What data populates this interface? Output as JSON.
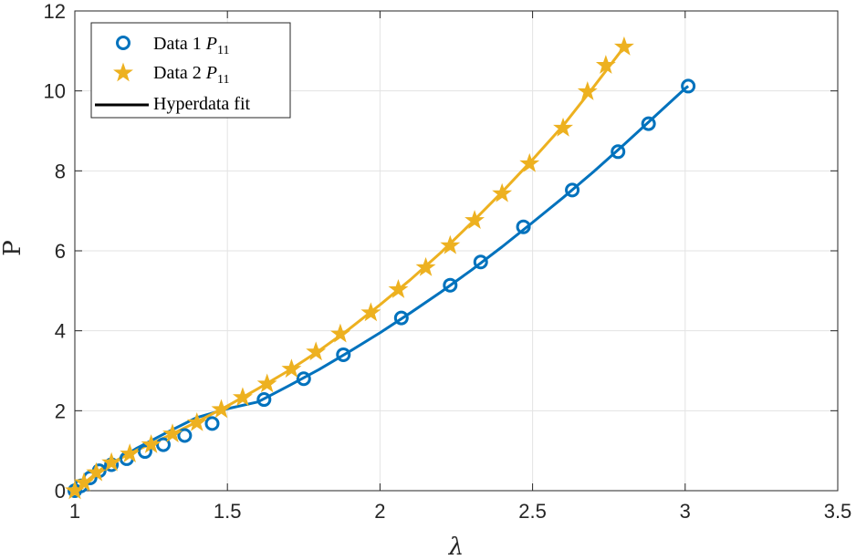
{
  "chart_data": {
    "type": "line",
    "xlabel": "λ",
    "ylabel": "P",
    "xlim": [
      1,
      3.5
    ],
    "ylim": [
      0,
      12
    ],
    "xticks": [
      "1",
      "1.5",
      "2",
      "2.5",
      "3",
      "3.5"
    ],
    "yticks": [
      "0",
      "2",
      "4",
      "6",
      "8",
      "10",
      "12"
    ],
    "grid": true,
    "legend_position": "top-left",
    "legend": [
      {
        "label_main": "Data 1 ",
        "label_var": "P",
        "label_sub": "11",
        "marker": "circle",
        "color": "#0072BD"
      },
      {
        "label_main": "Data 2 ",
        "label_var": "P",
        "label_sub": "11",
        "marker": "star",
        "color": "#EDB120"
      },
      {
        "label_main": "Hyperdata fit",
        "marker": "line",
        "color": "#000000"
      }
    ],
    "series": [
      {
        "name": "Data 1 P11",
        "marker": "circle",
        "color": "#0072BD",
        "x": [
          1.0,
          1.02,
          1.05,
          1.08,
          1.12,
          1.17,
          1.23,
          1.29,
          1.36,
          1.45,
          1.62,
          1.75,
          1.88,
          2.07,
          2.23,
          2.33,
          2.47,
          2.63,
          2.78,
          2.88,
          3.01
        ],
        "y": [
          0.0,
          0.12,
          0.32,
          0.5,
          0.65,
          0.8,
          0.98,
          1.15,
          1.38,
          1.68,
          2.28,
          2.8,
          3.4,
          4.32,
          5.14,
          5.72,
          6.6,
          7.52,
          8.48,
          9.18,
          10.12
        ]
      },
      {
        "name": "Data 2 P11",
        "marker": "star",
        "color": "#EDB120",
        "x": [
          1.0,
          1.03,
          1.07,
          1.12,
          1.18,
          1.25,
          1.32,
          1.4,
          1.48,
          1.55,
          1.63,
          1.71,
          1.79,
          1.87,
          1.97,
          2.06,
          2.15,
          2.23,
          2.31,
          2.4,
          2.49,
          2.6,
          2.68,
          2.74,
          2.8
        ],
        "y": [
          0.0,
          0.2,
          0.45,
          0.7,
          0.92,
          1.15,
          1.42,
          1.7,
          2.03,
          2.33,
          2.67,
          3.04,
          3.47,
          3.92,
          4.45,
          5.03,
          5.58,
          6.13,
          6.76,
          7.43,
          8.18,
          9.07,
          9.98,
          10.64,
          11.1
        ]
      }
    ],
    "fits": [
      {
        "name": "Hyperdata fit (Data 1)",
        "color": "#0072BD",
        "x": [
          1.0,
          1.1,
          1.2,
          1.3,
          1.4,
          1.5,
          1.6,
          1.7,
          1.8,
          1.9,
          2.0,
          2.1,
          2.2,
          2.3,
          2.4,
          2.5,
          2.6,
          2.7,
          2.8,
          2.9,
          3.0,
          3.01
        ],
        "y": [
          0.0,
          0.58,
          1.05,
          1.45,
          1.83,
          2.05,
          2.22,
          2.62,
          3.03,
          3.48,
          3.95,
          4.45,
          4.97,
          5.52,
          6.1,
          6.71,
          7.33,
          7.98,
          8.66,
          9.36,
          10.06,
          10.12
        ]
      },
      {
        "name": "Hyperdata fit (Data 2)",
        "color": "#EDB120",
        "x": [
          1.0,
          1.1,
          1.2,
          1.3,
          1.4,
          1.5,
          1.6,
          1.7,
          1.8,
          1.9,
          2.0,
          2.1,
          2.2,
          2.3,
          2.4,
          2.5,
          2.6,
          2.7,
          2.8
        ],
        "y": [
          0.0,
          0.62,
          1.0,
          1.35,
          1.72,
          2.12,
          2.55,
          3.0,
          3.5,
          4.05,
          4.65,
          5.28,
          5.96,
          6.7,
          7.47,
          8.28,
          9.13,
          10.1,
          11.1
        ]
      }
    ]
  }
}
